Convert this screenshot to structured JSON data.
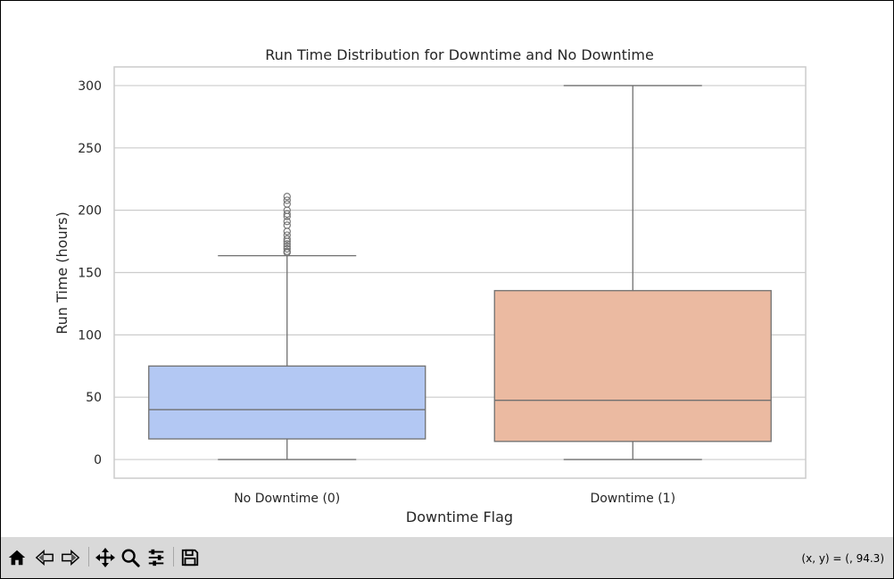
{
  "chart_data": {
    "type": "box",
    "title": "Run Time Distribution for Downtime and No Downtime",
    "xlabel": "Downtime Flag",
    "ylabel": "Run Time (hours)",
    "ylim": [
      -15,
      315
    ],
    "yticks": [
      0,
      50,
      100,
      150,
      200,
      250,
      300
    ],
    "grid": true,
    "categories": [
      "No Downtime (0)",
      "Downtime (1)"
    ],
    "boxes": [
      {
        "name": "No Downtime (0)",
        "whisker_low": 0,
        "q1": 16.5,
        "median": 40,
        "q3": 75,
        "whisker_high": 163.5,
        "outliers": [
          166,
          167,
          169,
          171,
          173,
          175,
          177,
          180,
          183,
          188,
          191,
          195,
          197,
          200,
          205,
          208,
          211
        ],
        "color": "#b3c8f3"
      },
      {
        "name": "Downtime (1)",
        "whisker_low": 0,
        "q1": 14.5,
        "median": 47.5,
        "q3": 135.5,
        "whisker_high": 300,
        "outliers": [],
        "color": "#ebbaa1"
      }
    ]
  },
  "toolbar": {
    "buttons": [
      "home-icon",
      "back-icon",
      "forward-icon",
      "pan-icon",
      "zoom-icon",
      "configure-icon",
      "save-icon"
    ],
    "coords": "(x, y) = (, 94.3)"
  }
}
